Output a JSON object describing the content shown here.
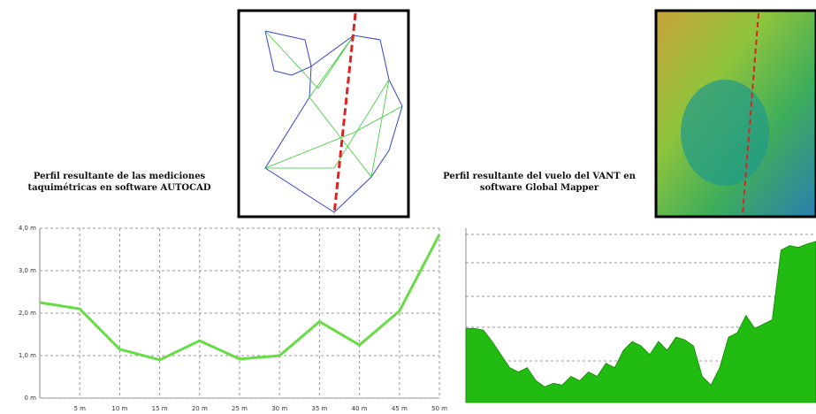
{
  "chart_data": [
    {
      "type": "line",
      "title": "Perfil resultante de las mediciones taquimétricas en software AUTOCAD",
      "x": [
        0,
        5,
        10,
        15,
        20,
        25,
        30,
        35,
        40,
        45,
        50
      ],
      "values": [
        2.25,
        2.1,
        1.15,
        0.9,
        1.35,
        0.92,
        1.0,
        1.8,
        1.25,
        2.05,
        3.85
      ],
      "color": "#66dd44",
      "xlim": [
        0,
        50
      ],
      "ylim": [
        0,
        4
      ],
      "xticks": [
        {
          "value": 5,
          "label": "5 m"
        },
        {
          "value": 10,
          "label": "10 m"
        },
        {
          "value": 15,
          "label": "15 m"
        },
        {
          "value": 20,
          "label": "20 m"
        },
        {
          "value": 25,
          "label": "25 m"
        },
        {
          "value": 30,
          "label": "30 m"
        },
        {
          "value": 35,
          "label": "35 m"
        },
        {
          "value": 40,
          "label": "40 m"
        },
        {
          "value": 45,
          "label": "45 m"
        },
        {
          "value": 50,
          "label": "50 m"
        }
      ],
      "yticks": [
        {
          "value": 0,
          "label": "0 m"
        },
        {
          "value": 1,
          "label": "1,0 m"
        },
        {
          "value": 2,
          "label": "2,0 m"
        },
        {
          "value": 3,
          "label": "3,0 m"
        },
        {
          "value": 4,
          "label": "4,0 m"
        }
      ],
      "grid": true
    },
    {
      "type": "area",
      "title": "Perfil resultante del vuelo del VANT en software Global Mapper",
      "values": [
        85,
        85,
        83,
        70,
        55,
        40,
        35,
        40,
        25,
        18,
        22,
        20,
        30,
        25,
        35,
        30,
        45,
        40,
        60,
        70,
        65,
        55,
        70,
        60,
        75,
        72,
        65,
        30,
        20,
        40,
        75,
        80,
        100,
        85,
        90,
        95,
        175,
        180,
        178,
        182,
        185
      ],
      "color": "#22bb11",
      "ylim": [
        0,
        200
      ]
    }
  ]
}
